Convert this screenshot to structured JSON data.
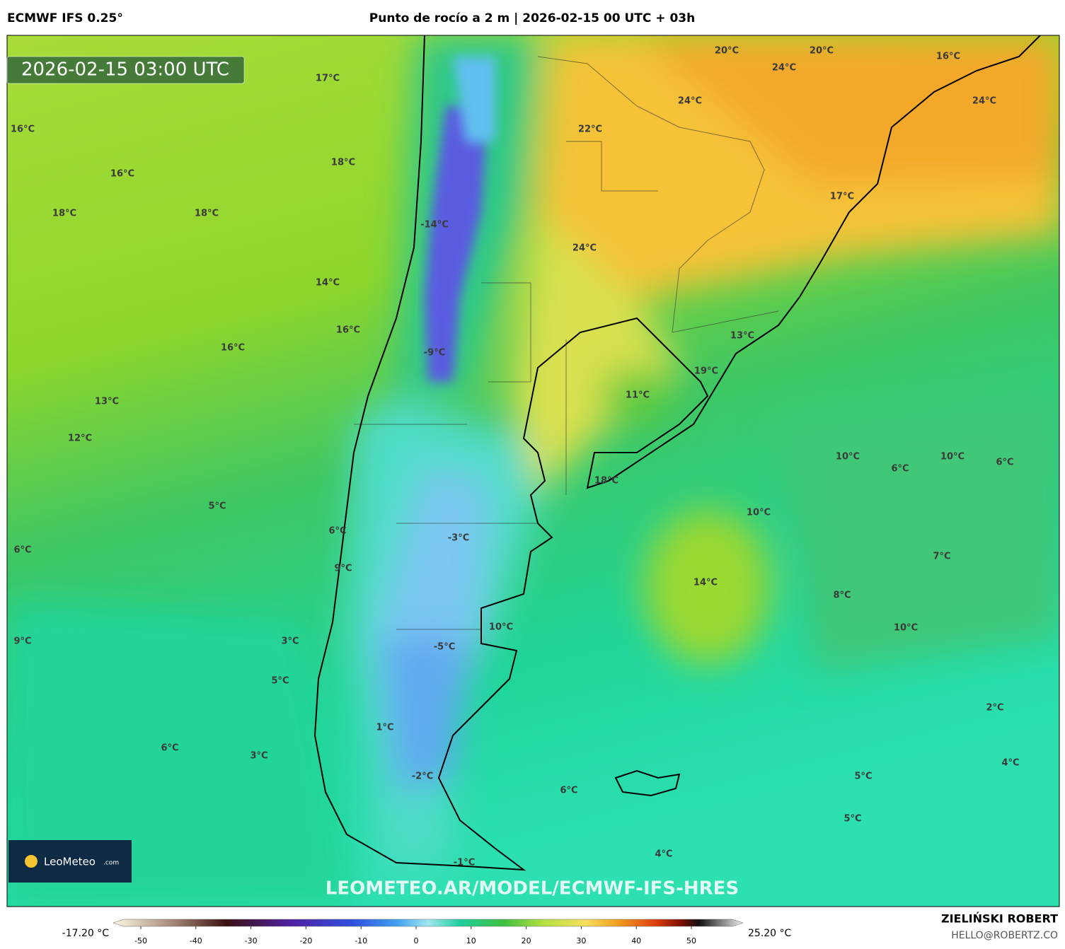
{
  "header": {
    "model": "ECMWF IFS 0.25°",
    "title": "Punto de rocío a 2 m | 2026-02-15 00 UTC + 03h",
    "timestamp": "2026-02-15 03:00 UTC"
  },
  "map_labels": [
    "17°C",
    "16°C",
    "18°C",
    "16°C",
    "18°C",
    "18°C",
    "-14°C",
    "14°C",
    "16°C",
    "16°C",
    "-9°C",
    "13°C",
    "12°C",
    "5°C",
    "6°C",
    "6°C",
    "9°C",
    "9°C",
    "3°C",
    "5°C",
    "6°C",
    "3°C",
    "1°C",
    "-2°C",
    "-1°C",
    "6°C",
    "4°C",
    "-3°C",
    "-5°C",
    "10°C",
    "14°C",
    "18°C",
    "10°C",
    "11°C",
    "19°C",
    "13°C",
    "24°C",
    "22°C",
    "24°C",
    "20°C",
    "24°C",
    "20°C",
    "16°C",
    "24°C",
    "17°C",
    "10°C",
    "6°C",
    "10°C",
    "6°C",
    "7°C",
    "8°C",
    "10°C",
    "2°C",
    "4°C",
    "5°C",
    "5°C"
  ],
  "watermark": "LEOMETEO.AR/MODEL/ECMWF-IFS-HRES",
  "logo": {
    "name": "LeoMeteo",
    "suffix": ".com"
  },
  "colorbar": {
    "min_label": "-17.20 °C",
    "max_label": "25.20 °C",
    "ticks": [
      -50,
      -40,
      -30,
      -20,
      -10,
      0,
      10,
      20,
      30,
      40,
      50
    ]
  },
  "footer": {
    "author": "ZIELIŃSKI ROBERT",
    "contact": "HELLO@ROBERTZ.CO"
  }
}
